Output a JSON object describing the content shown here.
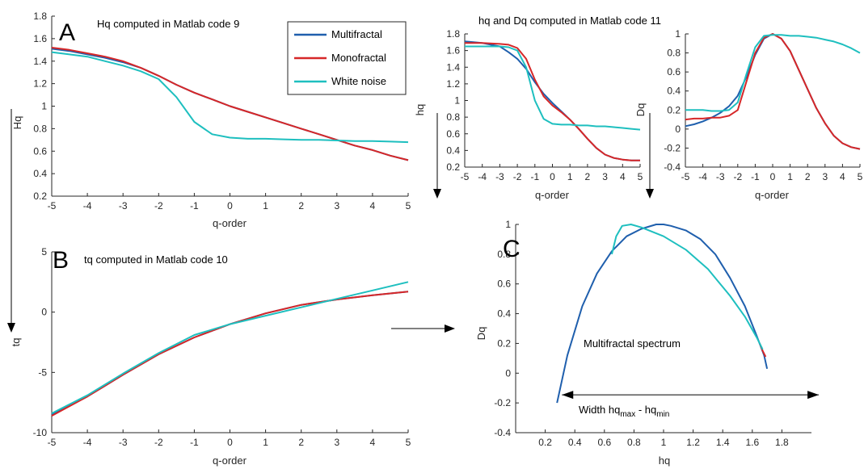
{
  "colors": {
    "Multifractal": "#1f5fad",
    "Monofractal": "#d62728",
    "White noise": "#1ebfbf",
    "axis": "#262626",
    "arrow": "#000000"
  },
  "legend": [
    "Multifractal",
    "Monofractal",
    "White noise"
  ],
  "chart_data": [
    {
      "id": "panelA",
      "panel_letter": "A",
      "type": "line",
      "title": "Hq computed in Matlab code 9",
      "xlabel": "q-order",
      "ylabel": "Hq",
      "xlim": [
        -5,
        5
      ],
      "ylim": [
        0.2,
        1.8
      ],
      "xticks": [
        -5,
        -4,
        -3,
        -2,
        -1,
        0,
        1,
        2,
        3,
        4,
        5
      ],
      "yticks": [
        0.2,
        0.4,
        0.6,
        0.8,
        1,
        1.2,
        1.4,
        1.6,
        1.8
      ],
      "x": [
        -5,
        -4.5,
        -4,
        -3.5,
        -3,
        -2.5,
        -2,
        -1.5,
        -1,
        -0.5,
        0,
        0.5,
        1,
        1.5,
        2,
        2.5,
        3,
        3.5,
        4,
        4.5,
        5
      ],
      "series": [
        {
          "name": "Multifractal",
          "values": [
            1.51,
            1.49,
            1.46,
            1.43,
            1.39,
            1.34,
            1.27,
            1.19,
            1.12,
            1.06,
            1.0,
            0.95,
            0.9,
            0.85,
            0.8,
            0.75,
            0.7,
            0.65,
            0.61,
            0.56,
            0.52
          ]
        },
        {
          "name": "Monofractal",
          "values": [
            1.52,
            1.5,
            1.47,
            1.44,
            1.4,
            1.34,
            1.27,
            1.19,
            1.12,
            1.06,
            1.0,
            0.95,
            0.9,
            0.85,
            0.8,
            0.75,
            0.7,
            0.65,
            0.61,
            0.56,
            0.52
          ]
        },
        {
          "name": "White noise",
          "values": [
            1.48,
            1.46,
            1.44,
            1.4,
            1.36,
            1.31,
            1.24,
            1.08,
            0.86,
            0.75,
            0.72,
            0.71,
            0.71,
            0.705,
            0.7,
            0.7,
            0.695,
            0.69,
            0.69,
            0.685,
            0.68
          ]
        }
      ]
    },
    {
      "id": "panelB",
      "panel_letter": "B",
      "type": "line",
      "title": "tq computed in Matlab code 10",
      "xlabel": "q-order",
      "ylabel": "tq",
      "xlim": [
        -5,
        5
      ],
      "ylim": [
        -10,
        5
      ],
      "xticks": [
        -5,
        -4,
        -3,
        -2,
        -1,
        0,
        1,
        2,
        3,
        4,
        5
      ],
      "yticks": [
        -10,
        -5,
        0,
        5
      ],
      "x": [
        -5,
        -4,
        -3,
        -2,
        -1,
        0,
        1,
        2,
        3,
        4,
        5
      ],
      "series": [
        {
          "name": "Multifractal",
          "values": [
            -8.5,
            -7.0,
            -5.2,
            -3.5,
            -2.1,
            -1.0,
            -0.1,
            0.6,
            1.05,
            1.4,
            1.7
          ]
        },
        {
          "name": "Monofractal",
          "values": [
            -8.6,
            -7.0,
            -5.2,
            -3.5,
            -2.1,
            -1.0,
            -0.1,
            0.6,
            1.05,
            1.4,
            1.7
          ]
        },
        {
          "name": "White noise",
          "values": [
            -8.4,
            -6.9,
            -5.1,
            -3.4,
            -1.9,
            -1.0,
            -0.3,
            0.4,
            1.1,
            1.8,
            2.5
          ]
        }
      ]
    },
    {
      "id": "panelHq",
      "type": "line",
      "title": "hq and Dq computed in Matlab code 11",
      "xlabel": "q-order",
      "ylabel": "hq",
      "xlim": [
        -5,
        5
      ],
      "ylim": [
        0.2,
        1.8
      ],
      "xticks": [
        -5,
        -4,
        -3,
        -2,
        -1,
        0,
        1,
        2,
        3,
        4,
        5
      ],
      "yticks": [
        0.2,
        0.4,
        0.6,
        0.8,
        1,
        1.2,
        1.4,
        1.6,
        1.8
      ],
      "x": [
        -5,
        -4,
        -3,
        -2.5,
        -2,
        -1.5,
        -1,
        -0.5,
        0,
        0.5,
        1,
        1.5,
        2,
        2.5,
        3,
        3.5,
        4,
        4.5,
        5
      ],
      "series": [
        {
          "name": "Multifractal",
          "values": [
            1.71,
            1.69,
            1.65,
            1.58,
            1.5,
            1.38,
            1.22,
            1.08,
            0.97,
            0.87,
            0.77,
            0.66,
            0.54,
            0.43,
            0.35,
            0.31,
            0.29,
            0.28,
            0.28
          ]
        },
        {
          "name": "Monofractal",
          "values": [
            1.69,
            1.69,
            1.68,
            1.67,
            1.63,
            1.5,
            1.25,
            1.05,
            0.94,
            0.86,
            0.77,
            0.66,
            0.54,
            0.43,
            0.35,
            0.31,
            0.29,
            0.28,
            0.28
          ]
        },
        {
          "name": "White noise",
          "values": [
            1.65,
            1.65,
            1.65,
            1.64,
            1.6,
            1.4,
            1.0,
            0.78,
            0.72,
            0.71,
            0.71,
            0.7,
            0.7,
            0.69,
            0.69,
            0.68,
            0.67,
            0.66,
            0.65
          ]
        }
      ]
    },
    {
      "id": "panelDq",
      "type": "line",
      "title": "",
      "xlabel": "q-order",
      "ylabel": "Dq",
      "xlim": [
        -5,
        5
      ],
      "ylim": [
        -0.4,
        1
      ],
      "xticks": [
        -5,
        -4,
        -3,
        -2,
        -1,
        0,
        1,
        2,
        3,
        4,
        5
      ],
      "yticks": [
        -0.4,
        -0.2,
        0,
        0.2,
        0.4,
        0.6,
        0.8,
        1
      ],
      "x": [
        -5,
        -4.5,
        -4,
        -3.5,
        -3,
        -2.5,
        -2,
        -1.5,
        -1,
        -0.5,
        0,
        0.5,
        1,
        1.5,
        2,
        2.5,
        3,
        3.5,
        4,
        4.5,
        5
      ],
      "series": [
        {
          "name": "Multifractal",
          "values": [
            0.03,
            0.05,
            0.08,
            0.12,
            0.17,
            0.24,
            0.35,
            0.55,
            0.78,
            0.95,
            1.0,
            0.95,
            0.82,
            0.62,
            0.42,
            0.22,
            0.06,
            -0.07,
            -0.15,
            -0.19,
            -0.21
          ]
        },
        {
          "name": "Monofractal",
          "values": [
            0.1,
            0.11,
            0.11,
            0.12,
            0.12,
            0.14,
            0.2,
            0.5,
            0.8,
            0.96,
            1.0,
            0.95,
            0.82,
            0.62,
            0.42,
            0.22,
            0.06,
            -0.07,
            -0.15,
            -0.19,
            -0.21
          ]
        },
        {
          "name": "White noise",
          "values": [
            0.2,
            0.2,
            0.2,
            0.19,
            0.19,
            0.2,
            0.28,
            0.58,
            0.86,
            0.98,
            0.99,
            0.99,
            0.98,
            0.98,
            0.97,
            0.96,
            0.94,
            0.92,
            0.89,
            0.85,
            0.8
          ]
        }
      ]
    },
    {
      "id": "panelC",
      "panel_letter": "C",
      "type": "line",
      "title": "",
      "xlabel": "hq",
      "ylabel": "Dq",
      "xlim": [
        0,
        2
      ],
      "ylim": [
        -0.4,
        1
      ],
      "xticks": [
        0.2,
        0.4,
        0.6,
        0.8,
        1,
        1.2,
        1.4,
        1.6,
        1.8
      ],
      "yticks": [
        -0.4,
        -0.2,
        0,
        0.2,
        0.4,
        0.6,
        0.8,
        1
      ],
      "annotation": "Multifractal spectrum",
      "width_label": "Width hq",
      "width_sub_max": "max",
      "width_minus": " - hq",
      "width_sub_min": "min",
      "width_arrow": [
        0.28,
        1.7,
        -0.2
      ],
      "series": [
        {
          "name": "Multifractal",
          "x": [
            0.28,
            0.35,
            0.45,
            0.55,
            0.65,
            0.75,
            0.85,
            0.95,
            1.0,
            1.05,
            1.15,
            1.25,
            1.35,
            1.45,
            1.55,
            1.63,
            1.68,
            1.7
          ],
          "y": [
            -0.2,
            0.12,
            0.45,
            0.67,
            0.82,
            0.92,
            0.97,
            1.0,
            1.0,
            0.99,
            0.96,
            0.9,
            0.8,
            0.64,
            0.45,
            0.25,
            0.12,
            0.03
          ]
        },
        {
          "name": "Monofractal",
          "x": [
            1.65,
            1.67,
            1.69
          ],
          "y": [
            0.2,
            0.15,
            0.11
          ]
        },
        {
          "name": "White noise",
          "x": [
            0.65,
            0.68,
            0.72,
            0.78,
            0.85,
            1.0,
            1.15,
            1.3,
            1.45,
            1.55,
            1.63,
            1.67
          ],
          "y": [
            0.8,
            0.92,
            0.99,
            1.0,
            0.98,
            0.92,
            0.83,
            0.7,
            0.52,
            0.38,
            0.24,
            0.16
          ]
        }
      ]
    }
  ]
}
